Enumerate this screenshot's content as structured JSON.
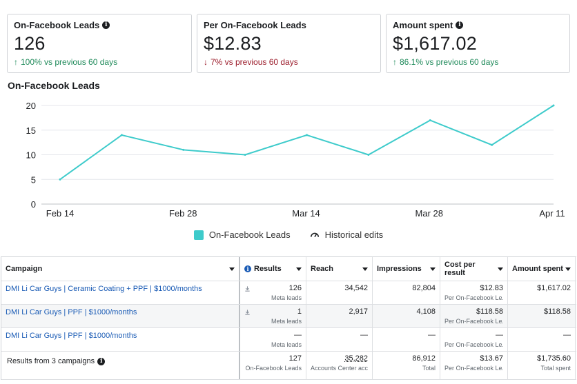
{
  "cards": [
    {
      "title": "On-Facebook Leads",
      "value": "126",
      "delta": "100% vs previous 60 days",
      "direction": "up",
      "info": true
    },
    {
      "title": "Per On-Facebook Leads",
      "value": "$12.83",
      "delta": "7% vs previous 60 days",
      "direction": "down",
      "info": false
    },
    {
      "title": "Amount spent",
      "value": "$1,617.02",
      "delta": "86.1% vs previous 60 days",
      "direction": "up",
      "info": true
    }
  ],
  "chart_title": "On-Facebook Leads",
  "chart_data": {
    "type": "line",
    "title": "On-Facebook Leads",
    "xlabel": "",
    "ylabel": "",
    "x_ticks": [
      "Feb 14",
      "Feb 28",
      "Mar 14",
      "Mar 28",
      "Apr 11"
    ],
    "y_ticks": [
      0,
      5,
      10,
      15,
      20
    ],
    "ylim": [
      0,
      20
    ],
    "series": [
      {
        "name": "On-Facebook Leads",
        "color": "#3ecbcb",
        "values": [
          5,
          14,
          11,
          10,
          14,
          10,
          17,
          12,
          20
        ]
      }
    ],
    "grid": true
  },
  "legend": {
    "series_label": "On-Facebook Leads",
    "historical_label": "Historical edits"
  },
  "table": {
    "headers": {
      "campaign": "Campaign",
      "results": "Results",
      "reach": "Reach",
      "impressions": "Impressions",
      "cost_per_result": "Cost per result",
      "amount_spent": "Amount spent"
    },
    "rows": [
      {
        "campaign": "DMI Li Car Guys | Ceramic Coating + PPF | $1000/months",
        "results": "126",
        "results_sub": "Meta leads",
        "reach": "34,542",
        "impressions": "82,804",
        "cpr": "$12.83",
        "cpr_sub": "Per On-Facebook Le...",
        "amount": "$1,617.02"
      },
      {
        "campaign": "DMI Li Car Guys | PPF | $1000/months",
        "results": "1",
        "results_sub": "Meta leads",
        "reach": "2,917",
        "impressions": "4,108",
        "cpr": "$118.58",
        "cpr_sub": "Per On-Facebook Le...",
        "amount": "$118.58"
      },
      {
        "campaign": "DMI Li Car Guys | PPF | $1000/months",
        "results": "—",
        "results_sub": "Meta leads",
        "reach": "—",
        "impressions": "—",
        "cpr": "—",
        "cpr_sub": "Per On-Facebook Le...",
        "amount": "—"
      }
    ],
    "totals": {
      "label": "Results from 3 campaigns",
      "results": "127",
      "results_sub": "On-Facebook Leads",
      "reach": "35,282",
      "reach_sub": "Accounts Center acc...",
      "impressions": "86,912",
      "impressions_sub": "Total",
      "cpr": "$13.67",
      "cpr_sub": "Per On-Facebook Le...",
      "amount": "$1,735.60",
      "amount_sub": "Total spent"
    }
  }
}
